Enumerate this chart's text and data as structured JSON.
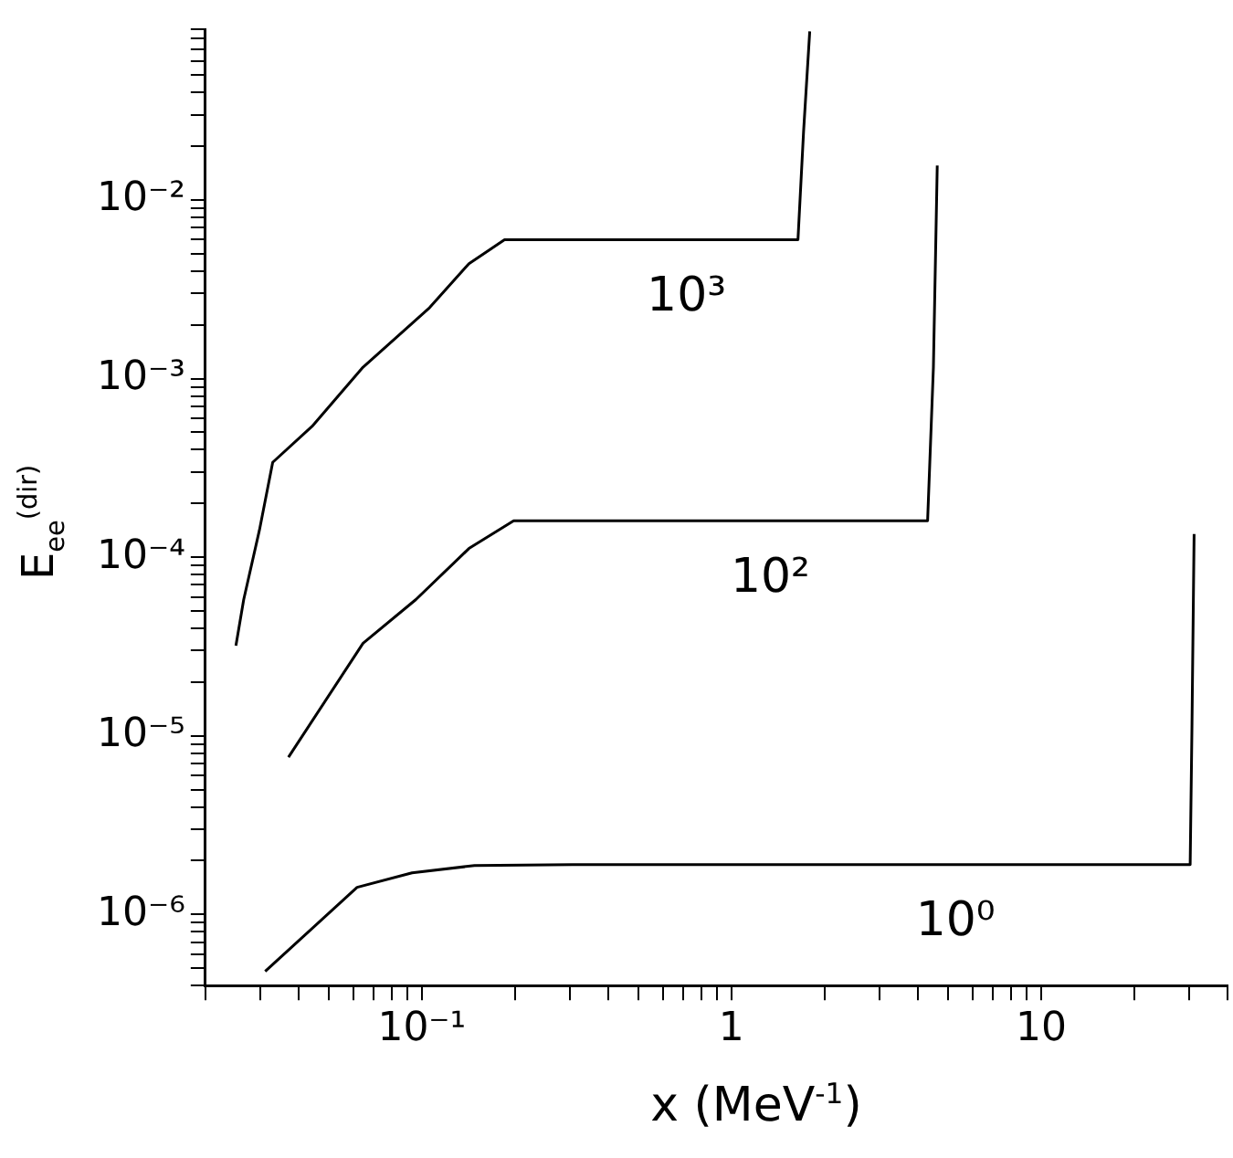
{
  "chart_data": {
    "type": "line",
    "xlabel": "x  (MeV$^{-1}$)",
    "ylabel": "E$_{ee}$$^{(dir)}$",
    "log": "xy",
    "grid": false,
    "legend": false,
    "marker": "none",
    "line_style": "solid",
    "xlim": [
      0.02,
      40
    ],
    "ylim": [
      4e-07,
      0.09
    ],
    "xticks": [
      {
        "value": 0.02,
        "label": null
      },
      {
        "value": 0.03,
        "label": null
      },
      {
        "value": 0.04,
        "label": null
      },
      {
        "value": 0.05,
        "label": null
      },
      {
        "value": 0.06,
        "label": null
      },
      {
        "value": 0.07,
        "label": null
      },
      {
        "value": 0.08,
        "label": null
      },
      {
        "value": 0.09,
        "label": null
      },
      {
        "value": 0.1,
        "label": "10⁻¹"
      },
      {
        "value": 0.2,
        "label": null
      },
      {
        "value": 0.3,
        "label": null
      },
      {
        "value": 0.4,
        "label": null
      },
      {
        "value": 0.5,
        "label": null
      },
      {
        "value": 0.6,
        "label": null
      },
      {
        "value": 0.7,
        "label": null
      },
      {
        "value": 0.8,
        "label": null
      },
      {
        "value": 0.9,
        "label": null
      },
      1,
      {
        "value": 2,
        "label": null
      },
      {
        "value": 3,
        "label": null
      },
      {
        "value": 4,
        "label": null
      },
      {
        "value": 5,
        "label": null
      },
      {
        "value": 6,
        "label": null
      },
      {
        "value": 7,
        "label": null
      },
      {
        "value": 8,
        "label": null
      },
      {
        "value": 9,
        "label": null
      },
      10,
      {
        "value": 20,
        "label": null
      },
      {
        "value": 30,
        "label": null
      },
      {
        "value": 40,
        "label": null
      }
    ],
    "yticks": [
      {
        "value": 4e-07,
        "label": null
      },
      {
        "value": 5e-07,
        "label": null
      },
      {
        "value": 6e-07,
        "label": null
      },
      {
        "value": 7e-07,
        "label": null
      },
      {
        "value": 8e-07,
        "label": null
      },
      {
        "value": 9e-07,
        "label": null
      },
      {
        "value": 1e-06,
        "label": "10⁻⁶"
      },
      {
        "value": 2e-06,
        "label": null
      },
      {
        "value": 3e-06,
        "label": null
      },
      {
        "value": 4e-06,
        "label": null
      },
      {
        "value": 5e-06,
        "label": null
      },
      {
        "value": 6e-06,
        "label": null
      },
      {
        "value": 7e-06,
        "label": null
      },
      {
        "value": 8e-06,
        "label": null
      },
      {
        "value": 9e-06,
        "label": null
      },
      {
        "value": 1e-05,
        "label": "10⁻⁵"
      },
      {
        "value": 2e-05,
        "label": null
      },
      {
        "value": 3e-05,
        "label": null
      },
      {
        "value": 4e-05,
        "label": null
      },
      {
        "value": 5e-05,
        "label": null
      },
      {
        "value": 6e-05,
        "label": null
      },
      {
        "value": 7e-05,
        "label": null
      },
      {
        "value": 8e-05,
        "label": null
      },
      {
        "value": 9e-05,
        "label": null
      },
      {
        "value": 0.0001,
        "label": "10⁻⁴"
      },
      {
        "value": 0.0002,
        "label": null
      },
      {
        "value": 0.0003,
        "label": null
      },
      {
        "value": 0.0004,
        "label": null
      },
      {
        "value": 0.0005,
        "label": null
      },
      {
        "value": 0.0006,
        "label": null
      },
      {
        "value": 0.0007,
        "label": null
      },
      {
        "value": 0.0008,
        "label": null
      },
      {
        "value": 0.0009,
        "label": null
      },
      {
        "value": 0.001,
        "label": "10⁻³"
      },
      {
        "value": 0.002,
        "label": null
      },
      {
        "value": 0.003,
        "label": null
      },
      {
        "value": 0.004,
        "label": null
      },
      {
        "value": 0.005,
        "label": null
      },
      {
        "value": 0.006,
        "label": null
      },
      {
        "value": 0.007,
        "label": null
      },
      {
        "value": 0.008,
        "label": null
      },
      {
        "value": 0.009,
        "label": null
      },
      {
        "value": 0.01,
        "label": "10⁻²"
      },
      {
        "value": 0.02,
        "label": null
      },
      {
        "value": 0.03,
        "label": null
      },
      {
        "value": 0.04,
        "label": null
      },
      {
        "value": 0.05,
        "label": null
      },
      {
        "value": 0.06,
        "label": null
      },
      {
        "value": 0.07,
        "label": null
      },
      {
        "value": 0.08,
        "label": null
      },
      {
        "value": 0.09,
        "label": null
      }
    ],
    "series": [
      {
        "name": "10³",
        "color": "#000000",
        "x": [
          0.0251,
          0.0266,
          0.0299,
          0.033,
          0.0442,
          0.0646,
          0.106,
          0.142,
          0.185,
          1.64,
          1.71,
          1.79
        ],
        "values": [
          3.2e-05,
          5.8e-05,
          0.000142,
          0.00034,
          0.00054,
          0.00116,
          0.0025,
          0.0044,
          0.006,
          0.006,
          0.0243,
          0.088
        ]
      },
      {
        "name": "10²",
        "color": "#000000",
        "x": [
          0.0371,
          0.0646,
          0.0957,
          0.142,
          0.198,
          4.3,
          4.49,
          4.62
        ],
        "values": [
          7.6e-06,
          3.3e-05,
          5.8e-05,
          0.000112,
          0.00016,
          0.00016,
          0.00116,
          0.0156
        ]
      },
      {
        "name": "10⁰",
        "color": "#000000",
        "x": [
          0.0312,
          0.0618,
          0.093,
          0.148,
          0.307,
          30.3,
          30.7,
          31.2
        ],
        "values": [
          4.8e-07,
          1.42e-06,
          1.71e-06,
          1.88e-06,
          1.9e-06,
          1.9e-06,
          1.09e-05,
          0.000135
        ]
      }
    ]
  }
}
